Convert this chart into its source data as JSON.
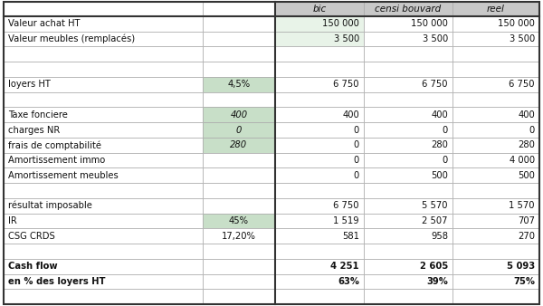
{
  "col_headers": [
    "",
    "",
    "bic",
    "censi bouvard",
    "reel"
  ],
  "rows": [
    {
      "label": "Valeur achat HT",
      "col2": "",
      "bic": "150 000",
      "censi": "150 000",
      "reel": "150 000",
      "highlight_col2": false,
      "highlight_bic": true,
      "bold": false,
      "italic_col2": false
    },
    {
      "label": "Valeur meubles (remplacés)",
      "col2": "",
      "bic": "3 500",
      "censi": "3 500",
      "reel": "3 500",
      "highlight_col2": false,
      "highlight_bic": true,
      "bold": false,
      "italic_col2": false
    },
    {
      "label": "",
      "col2": "",
      "bic": "",
      "censi": "",
      "reel": "",
      "highlight_col2": false,
      "highlight_bic": false,
      "bold": false,
      "italic_col2": false
    },
    {
      "label": "",
      "col2": "",
      "bic": "",
      "censi": "",
      "reel": "",
      "highlight_col2": false,
      "highlight_bic": false,
      "bold": false,
      "italic_col2": false
    },
    {
      "label": "loyers HT",
      "col2": "4,5%",
      "bic": "6 750",
      "censi": "6 750",
      "reel": "6 750",
      "highlight_col2": true,
      "highlight_bic": false,
      "bold": false,
      "italic_col2": false
    },
    {
      "label": "",
      "col2": "",
      "bic": "",
      "censi": "",
      "reel": "",
      "highlight_col2": false,
      "highlight_bic": false,
      "bold": false,
      "italic_col2": false
    },
    {
      "label": "Taxe fonciere",
      "col2": "400",
      "bic": "400",
      "censi": "400",
      "reel": "400",
      "highlight_col2": true,
      "highlight_bic": false,
      "bold": false,
      "italic_col2": true
    },
    {
      "label": "charges NR",
      "col2": "0",
      "bic": "0",
      "censi": "0",
      "reel": "0",
      "highlight_col2": true,
      "highlight_bic": false,
      "bold": false,
      "italic_col2": true
    },
    {
      "label": "frais de comptabilité",
      "col2": "280",
      "bic": "0",
      "censi": "280",
      "reel": "280",
      "highlight_col2": true,
      "highlight_bic": false,
      "bold": false,
      "italic_col2": true
    },
    {
      "label": "Amortissement immo",
      "col2": "",
      "bic": "0",
      "censi": "0",
      "reel": "4 000",
      "highlight_col2": false,
      "highlight_bic": false,
      "bold": false,
      "italic_col2": false
    },
    {
      "label": "Amortissement meubles",
      "col2": "",
      "bic": "0",
      "censi": "500",
      "reel": "500",
      "highlight_col2": false,
      "highlight_bic": false,
      "bold": false,
      "italic_col2": false
    },
    {
      "label": "",
      "col2": "",
      "bic": "",
      "censi": "",
      "reel": "",
      "highlight_col2": false,
      "highlight_bic": false,
      "bold": false,
      "italic_col2": false
    },
    {
      "label": "résultat imposable",
      "col2": "",
      "bic": "6 750",
      "censi": "5 570",
      "reel": "1 570",
      "highlight_col2": false,
      "highlight_bic": false,
      "bold": false,
      "italic_col2": false
    },
    {
      "label": "IR",
      "col2": "45%",
      "bic": "1 519",
      "censi": "2 507",
      "reel": "707",
      "highlight_col2": true,
      "highlight_bic": false,
      "bold": false,
      "italic_col2": false
    },
    {
      "label": "CSG CRDS",
      "col2": "17,20%",
      "bic": "581",
      "censi": "958",
      "reel": "270",
      "highlight_col2": false,
      "highlight_bic": false,
      "bold": false,
      "italic_col2": false
    },
    {
      "label": "",
      "col2": "",
      "bic": "",
      "censi": "",
      "reel": "",
      "highlight_col2": false,
      "highlight_bic": false,
      "bold": false,
      "italic_col2": false
    },
    {
      "label": "Cash flow",
      "col2": "",
      "bic": "4 251",
      "censi": "2 605",
      "reel": "5 093",
      "highlight_col2": false,
      "highlight_bic": false,
      "bold": true,
      "italic_col2": false
    },
    {
      "label": "en % des loyers HT",
      "col2": "",
      "bic": "63%",
      "censi": "39%",
      "reel": "75%",
      "highlight_col2": false,
      "highlight_bic": false,
      "bold": true,
      "italic_col2": false
    },
    {
      "label": "",
      "col2": "",
      "bic": "",
      "censi": "",
      "reel": "",
      "highlight_col2": false,
      "highlight_bic": false,
      "bold": false,
      "italic_col2": false
    }
  ],
  "header_bg": "#c8c8c8",
  "highlight_green_bic": "#e8f3e8",
  "highlight_green_col2": "#c8dfc8",
  "border_color_light": "#aaaaaa",
  "border_color_dark": "#333333",
  "text_color": "#111111",
  "font_size": 7.2,
  "header_font_size": 7.5
}
